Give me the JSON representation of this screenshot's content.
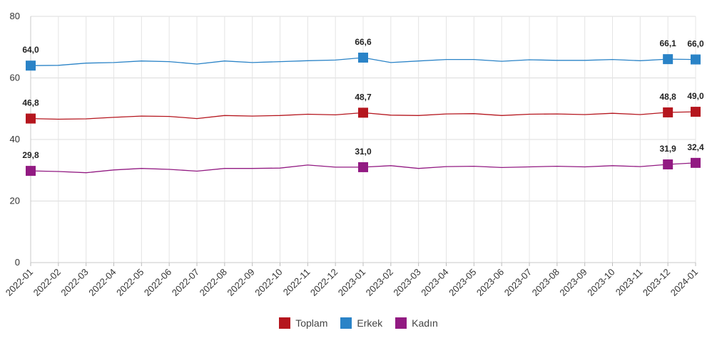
{
  "chart_data": {
    "type": "line",
    "title": "",
    "xlabel": "",
    "ylabel": "",
    "ylim": [
      0,
      80
    ],
    "yticks": [
      0,
      20,
      40,
      60,
      80
    ],
    "grid": true,
    "legend_position": "bottom-center",
    "categories": [
      "2022-01",
      "2022-02",
      "2022-03",
      "2022-04",
      "2022-05",
      "2022-06",
      "2022-07",
      "2022-08",
      "2022-09",
      "2022-10",
      "2022-11",
      "2022-12",
      "2023-01",
      "2023-02",
      "2023-03",
      "2023-04",
      "2023-05",
      "2023-06",
      "2023-07",
      "2023-08",
      "2023-09",
      "2023-10",
      "2023-11",
      "2023-12",
      "2024-01"
    ],
    "series": [
      {
        "name": "Toplam",
        "color": "#b5161e",
        "values": [
          46.8,
          46.6,
          46.7,
          47.2,
          47.6,
          47.5,
          46.8,
          47.8,
          47.6,
          47.8,
          48.2,
          48.0,
          48.7,
          47.9,
          47.8,
          48.3,
          48.4,
          47.8,
          48.2,
          48.3,
          48.1,
          48.5,
          48.1,
          48.8,
          49.0
        ],
        "highlighted": [
          0,
          12,
          23,
          24
        ],
        "labels": [
          "46,8",
          "48,7",
          "48,8",
          "49,0"
        ]
      },
      {
        "name": "Erkek",
        "color": "#2a83c7",
        "values": [
          64.0,
          64.1,
          64.8,
          65.0,
          65.5,
          65.3,
          64.5,
          65.5,
          65.0,
          65.3,
          65.6,
          65.8,
          66.6,
          65.0,
          65.5,
          66.0,
          66.0,
          65.4,
          65.9,
          65.7,
          65.7,
          66.0,
          65.6,
          66.1,
          66.0
        ],
        "highlighted": [
          0,
          12,
          23,
          24
        ],
        "labels": [
          "64,0",
          "66,6",
          "66,1",
          "66,0"
        ]
      },
      {
        "name": "Kadın",
        "color": "#921a82",
        "values": [
          29.8,
          29.6,
          29.2,
          30.1,
          30.6,
          30.3,
          29.7,
          30.6,
          30.6,
          30.7,
          31.7,
          31.0,
          31.0,
          31.5,
          30.6,
          31.2,
          31.3,
          30.9,
          31.1,
          31.3,
          31.1,
          31.5,
          31.2,
          31.9,
          32.4
        ],
        "highlighted": [
          0,
          12,
          23,
          24
        ],
        "labels": [
          "29,8",
          "31,0",
          "31,9",
          "32,4"
        ]
      }
    ]
  }
}
